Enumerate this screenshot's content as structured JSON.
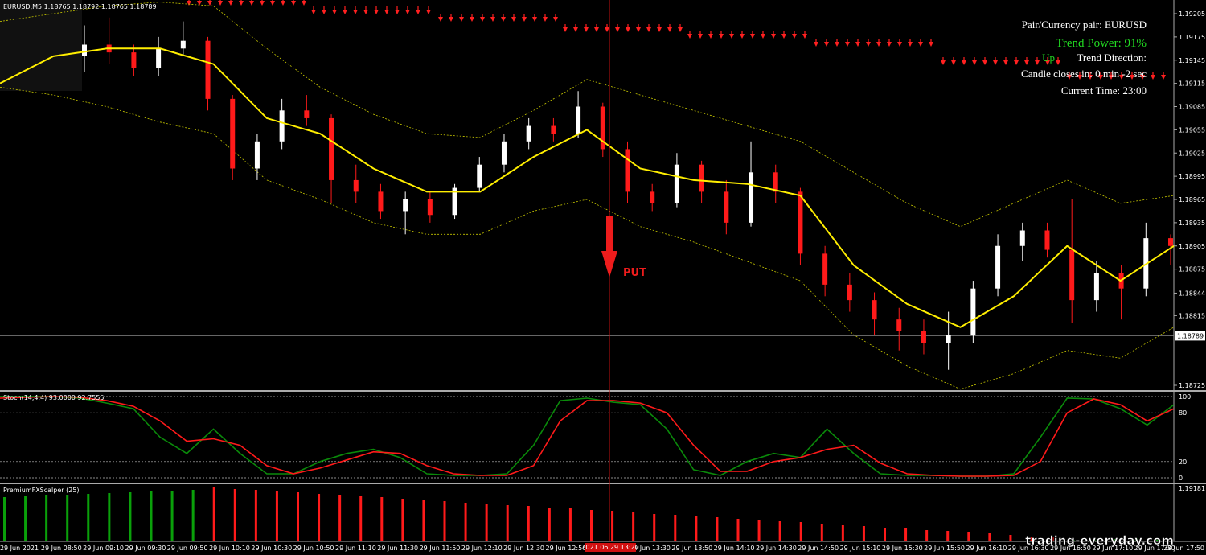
{
  "header": {
    "symbol_line": "EURUSD,M5  1.18765 1.18792 1.18765 1.18789"
  },
  "info_panel": {
    "pair": "Pair/Currency pair: EURUSD",
    "trend_power": "Trend Power: 91%",
    "direction_value": "Up",
    "direction_label": "Trend Direction:",
    "candle_closes": "Candle closes in: 0 min -2 sec",
    "current_time": "Current Time: 23:00"
  },
  "signal": {
    "label": "PUT"
  },
  "price_chart": {
    "ylim": [
      1.18725,
      1.19205
    ],
    "yticks": [
      1.19205,
      1.19175,
      1.19145,
      1.19115,
      1.19085,
      1.19055,
      1.19025,
      1.18995,
      1.18965,
      1.18935,
      1.18905,
      1.18875,
      1.18844,
      1.18815,
      1.18725
    ],
    "current_price": 1.18789,
    "up_color": "#ffffff",
    "down_color": "#ff1a1a",
    "candles": [
      [
        1.1915,
        1.1919,
        1.1913,
        1.19165
      ],
      [
        1.19165,
        1.192,
        1.1914,
        1.19155
      ],
      [
        1.19155,
        1.19165,
        1.19125,
        1.19135
      ],
      [
        1.19135,
        1.19175,
        1.19125,
        1.1916
      ],
      [
        1.1916,
        1.19195,
        1.1915,
        1.1917
      ],
      [
        1.1917,
        1.19175,
        1.1908,
        1.19095
      ],
      [
        1.19095,
        1.191,
        1.1899,
        1.19005
      ],
      [
        1.19005,
        1.1905,
        1.1899,
        1.1904
      ],
      [
        1.1904,
        1.19095,
        1.1903,
        1.1908
      ],
      [
        1.1908,
        1.191,
        1.1906,
        1.1907
      ],
      [
        1.1907,
        1.19075,
        1.1896,
        1.1899
      ],
      [
        1.1899,
        1.1901,
        1.1896,
        1.18975
      ],
      [
        1.18975,
        1.18985,
        1.1894,
        1.1895
      ],
      [
        1.1895,
        1.18975,
        1.1892,
        1.18965
      ],
      [
        1.18965,
        1.18975,
        1.18935,
        1.18945
      ],
      [
        1.18945,
        1.18985,
        1.1894,
        1.1898
      ],
      [
        1.1898,
        1.1902,
        1.18975,
        1.1901
      ],
      [
        1.1901,
        1.1905,
        1.19,
        1.1904
      ],
      [
        1.1904,
        1.1907,
        1.1903,
        1.1906
      ],
      [
        1.1906,
        1.1907,
        1.1904,
        1.1905
      ],
      [
        1.1905,
        1.19105,
        1.19045,
        1.19085
      ],
      [
        1.19085,
        1.1909,
        1.1902,
        1.1903
      ],
      [
        1.1903,
        1.1904,
        1.1896,
        1.18975
      ],
      [
        1.18975,
        1.18985,
        1.1895,
        1.1896
      ],
      [
        1.1896,
        1.19025,
        1.18955,
        1.1901
      ],
      [
        1.1901,
        1.19015,
        1.1896,
        1.18975
      ],
      [
        1.18975,
        1.1899,
        1.1892,
        1.18935
      ],
      [
        1.18935,
        1.1904,
        1.1893,
        1.19
      ],
      [
        1.19,
        1.1901,
        1.1896,
        1.18975
      ],
      [
        1.18975,
        1.1898,
        1.1888,
        1.18895
      ],
      [
        1.18895,
        1.18905,
        1.1884,
        1.18855
      ],
      [
        1.18855,
        1.1887,
        1.1882,
        1.18835
      ],
      [
        1.18835,
        1.18845,
        1.1879,
        1.1881
      ],
      [
        1.1881,
        1.18825,
        1.1877,
        1.18795
      ],
      [
        1.18795,
        1.1881,
        1.18765,
        1.1878
      ],
      [
        1.1878,
        1.1882,
        1.18745,
        1.1879
      ],
      [
        1.1879,
        1.1886,
        1.1878,
        1.1885
      ],
      [
        1.1885,
        1.1892,
        1.1884,
        1.18905
      ],
      [
        1.18905,
        1.18935,
        1.18885,
        1.18925
      ],
      [
        1.18925,
        1.18935,
        1.1889,
        1.189
      ],
      [
        1.189,
        1.18965,
        1.18805,
        1.18835
      ],
      [
        1.18835,
        1.18885,
        1.1882,
        1.1887
      ],
      [
        1.1887,
        1.1888,
        1.1881,
        1.1885
      ],
      [
        1.1885,
        1.18935,
        1.1884,
        1.18915
      ],
      [
        1.18915,
        1.1892,
        1.1888,
        1.18905
      ]
    ],
    "ma": {
      "color": "#ffee00",
      "values": [
        1.19115,
        1.1915,
        1.1916,
        1.1916,
        1.1914,
        1.1907,
        1.1905,
        1.19005,
        1.18975,
        1.18975,
        1.1902,
        1.19055,
        1.19005,
        1.1899,
        1.18985,
        1.1897,
        1.1888,
        1.1883,
        1.188,
        1.1884,
        1.18905,
        1.1886,
        1.18905
      ]
    },
    "bands": {
      "color": "#c8c800",
      "upper": [
        1.19195,
        1.19205,
        1.19215,
        1.1922,
        1.19215,
        1.1916,
        1.1911,
        1.19075,
        1.1905,
        1.19045,
        1.1908,
        1.1912,
        1.191,
        1.1908,
        1.1906,
        1.1904,
        1.19,
        1.1896,
        1.1893,
        1.1896,
        1.1899,
        1.1896,
        1.1897
      ],
      "lower": [
        1.1911,
        1.191,
        1.19085,
        1.19065,
        1.1905,
        1.1899,
        1.18965,
        1.18935,
        1.1892,
        1.1892,
        1.1895,
        1.18965,
        1.1893,
        1.1891,
        1.18885,
        1.1886,
        1.1879,
        1.1875,
        1.1872,
        1.1874,
        1.1877,
        1.1876,
        1.188
      ]
    }
  },
  "stochastic": {
    "label": "Stoch(14,4,4) 93.0000 92.7555",
    "ylim": [
      0,
      100
    ],
    "yticks": [
      0,
      20,
      80,
      100
    ],
    "main": {
      "color": "#0a8a0a",
      "values": [
        100,
        100,
        100,
        98,
        92,
        85,
        50,
        30,
        60,
        30,
        5,
        5,
        20,
        30,
        35,
        25,
        5,
        3,
        3,
        5,
        40,
        95,
        98,
        93,
        90,
        60,
        10,
        3,
        20,
        30,
        25,
        60,
        30,
        5,
        3,
        3,
        2,
        2,
        5,
        50,
        98,
        97,
        85,
        65,
        90
      ]
    },
    "signal": {
      "color": "#ff1a1a",
      "values": [
        98,
        99,
        100,
        99,
        95,
        88,
        70,
        45,
        48,
        40,
        15,
        5,
        12,
        22,
        32,
        30,
        15,
        5,
        3,
        3,
        15,
        70,
        95,
        95,
        92,
        80,
        40,
        8,
        8,
        20,
        25,
        35,
        40,
        18,
        5,
        3,
        2,
        2,
        3,
        20,
        80,
        97,
        90,
        70,
        85
      ]
    }
  },
  "scalper": {
    "label": "PremiumFXScalper (25)",
    "axis_label": 1.19181,
    "up": {
      "color": "#0aa00a",
      "values": [
        55,
        56,
        57,
        58,
        59,
        60,
        61,
        62,
        63,
        64,
        null,
        null,
        null,
        null,
        null,
        null,
        null,
        null,
        null,
        null,
        null,
        null,
        null,
        null,
        null,
        null,
        null,
        null,
        null,
        null,
        null,
        null,
        null,
        null,
        null,
        null,
        null,
        null,
        null,
        null,
        null,
        null,
        null,
        null,
        null,
        null,
        null,
        null,
        null,
        null,
        null,
        2,
        3,
        3,
        4,
        4
      ]
    },
    "down": {
      "color": "#ff1a1a",
      "values": [
        null,
        null,
        null,
        null,
        null,
        null,
        null,
        null,
        null,
        null,
        67,
        65,
        64,
        62,
        61,
        59,
        58,
        56,
        55,
        53,
        52,
        50,
        48,
        47,
        45,
        44,
        42,
        41,
        39,
        38,
        36,
        34,
        33,
        31,
        30,
        28,
        27,
        25,
        24,
        22,
        20,
        19,
        17,
        16,
        14,
        13,
        11,
        10,
        8,
        6,
        5,
        null,
        null,
        null,
        null,
        null
      ]
    }
  },
  "time_axis": {
    "labels": [
      "29 Jun 2021",
      "29 Jun 08:50",
      "29 Jun 09:10",
      "29 Jun 09:30",
      "29 Jun 09:50",
      "29 Jun 10:10",
      "29 Jun 10:30",
      "29 Jun 10:50",
      "29 Jun 11:10",
      "29 Jun 11:30",
      "29 Jun 11:50",
      "29 Jun 12:10",
      "29 Jun 12:30",
      "29 Jun 12:50",
      null,
      "29 Jun 13:30",
      "29 Jun 13:50",
      "29 Jun 14:10",
      "29 Jun 14:30",
      "29 Jun 14:50",
      "29 Jun 15:10",
      "29 Jun 15:30",
      "29 Jun 15:50",
      "29 Jun 16:10",
      "29 Jun 16:30",
      "29 Jun 16:50",
      "29 Jun 17:10",
      "29 Jun 17:30",
      "29 Jun 17:50"
    ],
    "highlighted": "2021.06.29 13:20"
  },
  "watermark": "trading-everyday.com"
}
